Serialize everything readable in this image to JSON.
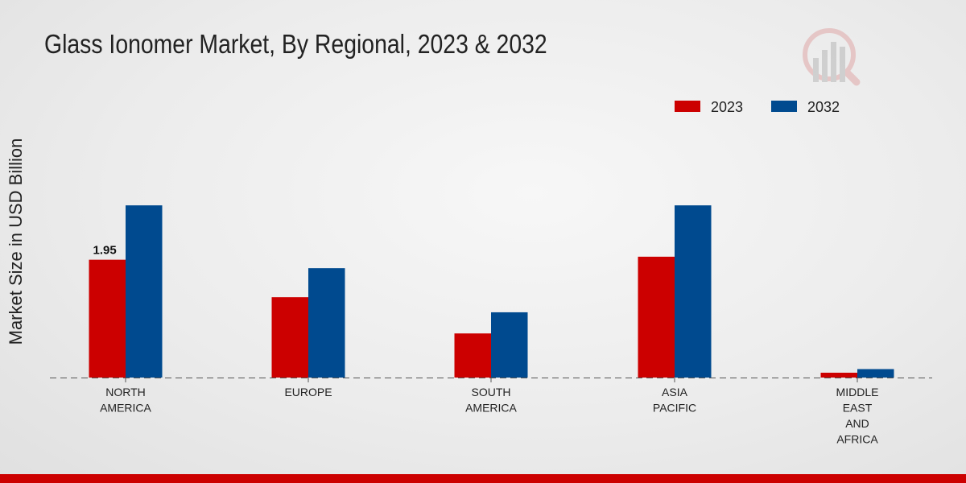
{
  "chart_data": {
    "type": "bar",
    "title": "Glass Ionomer Market, By Regional, 2023 & 2032",
    "ylabel": "Market Size in USD Billion",
    "xlabel": "",
    "categories": [
      "NORTH\nAMERICA",
      "EUROPE",
      "SOUTH\nAMERICA",
      "ASIA\nPACIFIC",
      "MIDDLE\nEAST\nAND\nAFRICA"
    ],
    "series": [
      {
        "name": "2023",
        "color": "#cc0000",
        "values": [
          1.95,
          1.33,
          0.73,
          2.0,
          0.08
        ]
      },
      {
        "name": "2032",
        "color": "#004a8f",
        "values": [
          2.85,
          1.81,
          1.08,
          2.85,
          0.14
        ]
      }
    ],
    "data_labels": [
      {
        "series": 0,
        "index": 0,
        "text": "1.95"
      }
    ],
    "ylim": [
      0,
      4.65
    ],
    "legend_position": "top-right",
    "grid": false
  }
}
